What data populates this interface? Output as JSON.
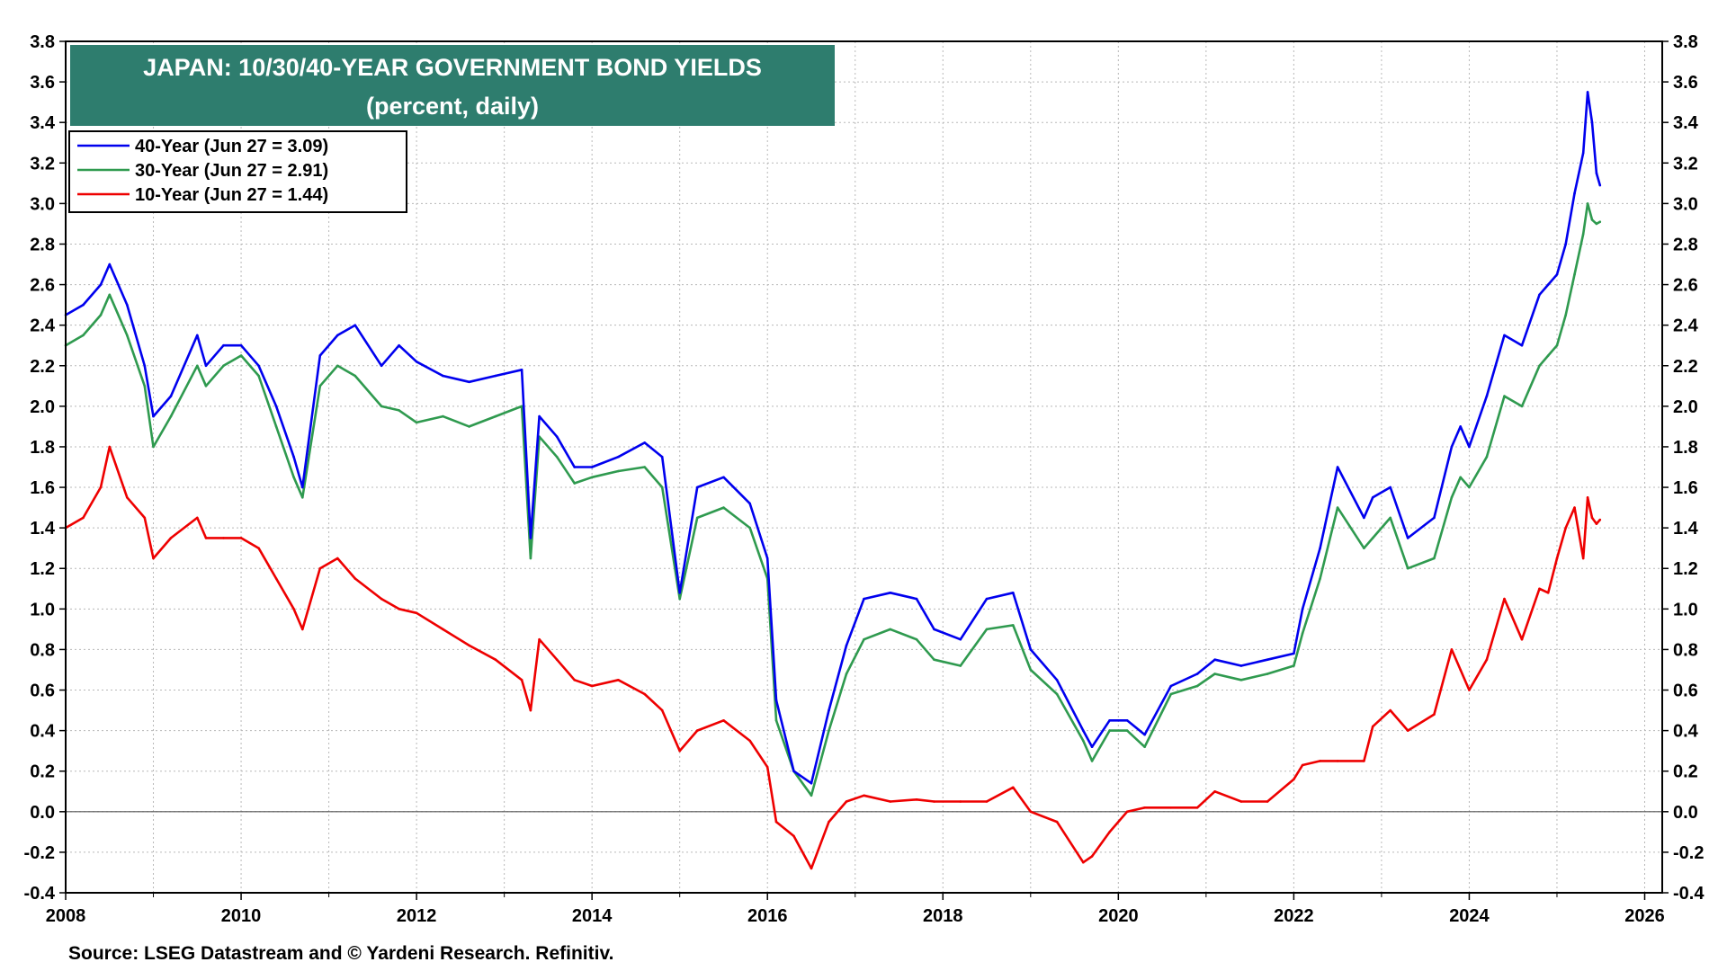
{
  "chart_data": {
    "type": "line",
    "title": "JAPAN: 10/30/40-YEAR GOVERNMENT BOND YIELDS",
    "subtitle": "(percent, daily)",
    "source": "Source: LSEG Datastream and © Yardeni Research. Refinitiv.",
    "xlim": [
      2008,
      2026.2
    ],
    "ylim": [
      -0.4,
      3.8
    ],
    "x_ticks": [
      "2008",
      "2010",
      "2012",
      "2014",
      "2016",
      "2018",
      "2020",
      "2022",
      "2024",
      "2026"
    ],
    "y_ticks": [
      "-0.4",
      "-0.2",
      "0.0",
      "0.2",
      "0.4",
      "0.6",
      "0.8",
      "1.0",
      "1.2",
      "1.4",
      "1.6",
      "1.8",
      "2.0",
      "2.2",
      "2.4",
      "2.6",
      "2.8",
      "3.0",
      "3.2",
      "3.4",
      "3.6",
      "3.8"
    ],
    "grid": true,
    "zero_line": true,
    "legend_position": "top-left",
    "colors": {
      "title_bg": "#2e7d6e",
      "grid": "#b8b8b8"
    },
    "series": [
      {
        "name": "40-Year (Jun 27 = 3.09)",
        "color": "#0000ee",
        "x": [
          2008.0,
          2008.2,
          2008.4,
          2008.5,
          2008.7,
          2008.9,
          2009.0,
          2009.2,
          2009.5,
          2009.6,
          2009.8,
          2010.0,
          2010.2,
          2010.4,
          2010.6,
          2010.7,
          2010.9,
          2011.1,
          2011.3,
          2011.6,
          2011.8,
          2012.0,
          2012.3,
          2012.6,
          2012.9,
          2013.2,
          2013.3,
          2013.4,
          2013.6,
          2013.8,
          2014.0,
          2014.3,
          2014.6,
          2014.8,
          2015.0,
          2015.2,
          2015.5,
          2015.8,
          2016.0,
          2016.1,
          2016.3,
          2016.5,
          2016.7,
          2016.9,
          2017.1,
          2017.4,
          2017.7,
          2017.9,
          2018.2,
          2018.5,
          2018.8,
          2019.0,
          2019.3,
          2019.6,
          2019.7,
          2019.9,
          2020.1,
          2020.3,
          2020.6,
          2020.9,
          2021.1,
          2021.4,
          2021.7,
          2022.0,
          2022.1,
          2022.3,
          2022.5,
          2022.8,
          2022.9,
          2023.1,
          2023.3,
          2023.6,
          2023.8,
          2023.9,
          2024.0,
          2024.2,
          2024.4,
          2024.6,
          2024.8,
          2024.9,
          2025.0,
          2025.1,
          2025.2,
          2025.3,
          2025.35,
          2025.4,
          2025.45,
          2025.49
        ],
        "values": [
          2.45,
          2.5,
          2.6,
          2.7,
          2.5,
          2.2,
          1.95,
          2.05,
          2.35,
          2.2,
          2.3,
          2.3,
          2.2,
          2.0,
          1.75,
          1.6,
          2.25,
          2.35,
          2.4,
          2.2,
          2.3,
          2.22,
          2.15,
          2.12,
          2.15,
          2.18,
          1.35,
          1.95,
          1.85,
          1.7,
          1.7,
          1.75,
          1.82,
          1.75,
          1.08,
          1.6,
          1.65,
          1.52,
          1.25,
          0.55,
          0.2,
          0.14,
          0.5,
          0.82,
          1.05,
          1.08,
          1.05,
          0.9,
          0.85,
          1.05,
          1.08,
          0.8,
          0.65,
          0.4,
          0.32,
          0.45,
          0.45,
          0.38,
          0.62,
          0.68,
          0.75,
          0.72,
          0.75,
          0.78,
          1.0,
          1.3,
          1.7,
          1.45,
          1.55,
          1.6,
          1.35,
          1.45,
          1.8,
          1.9,
          1.8,
          2.05,
          2.35,
          2.3,
          2.55,
          2.6,
          2.65,
          2.8,
          3.05,
          3.25,
          3.55,
          3.4,
          3.15,
          3.09
        ]
      },
      {
        "name": "30-Year (Jun 27 = 2.91)",
        "color": "#2f9a4f",
        "x": [
          2008.0,
          2008.2,
          2008.4,
          2008.5,
          2008.7,
          2008.9,
          2009.0,
          2009.2,
          2009.5,
          2009.6,
          2009.8,
          2010.0,
          2010.2,
          2010.4,
          2010.6,
          2010.7,
          2010.9,
          2011.1,
          2011.3,
          2011.6,
          2011.8,
          2012.0,
          2012.3,
          2012.6,
          2012.9,
          2013.2,
          2013.3,
          2013.4,
          2013.6,
          2013.8,
          2014.0,
          2014.3,
          2014.6,
          2014.8,
          2015.0,
          2015.2,
          2015.5,
          2015.8,
          2016.0,
          2016.1,
          2016.3,
          2016.5,
          2016.7,
          2016.9,
          2017.1,
          2017.4,
          2017.7,
          2017.9,
          2018.2,
          2018.5,
          2018.8,
          2019.0,
          2019.3,
          2019.6,
          2019.7,
          2019.9,
          2020.1,
          2020.3,
          2020.6,
          2020.9,
          2021.1,
          2021.4,
          2021.7,
          2022.0,
          2022.1,
          2022.3,
          2022.5,
          2022.8,
          2022.9,
          2023.1,
          2023.3,
          2023.6,
          2023.8,
          2023.9,
          2024.0,
          2024.2,
          2024.4,
          2024.6,
          2024.8,
          2024.9,
          2025.0,
          2025.1,
          2025.2,
          2025.3,
          2025.35,
          2025.4,
          2025.45,
          2025.49
        ],
        "values": [
          2.3,
          2.35,
          2.45,
          2.55,
          2.35,
          2.1,
          1.8,
          1.95,
          2.2,
          2.1,
          2.2,
          2.25,
          2.15,
          1.9,
          1.65,
          1.55,
          2.1,
          2.2,
          2.15,
          2.0,
          1.98,
          1.92,
          1.95,
          1.9,
          1.95,
          2.0,
          1.25,
          1.85,
          1.75,
          1.62,
          1.65,
          1.68,
          1.7,
          1.6,
          1.05,
          1.45,
          1.5,
          1.4,
          1.15,
          0.45,
          0.2,
          0.08,
          0.4,
          0.68,
          0.85,
          0.9,
          0.85,
          0.75,
          0.72,
          0.9,
          0.92,
          0.7,
          0.58,
          0.35,
          0.25,
          0.4,
          0.4,
          0.32,
          0.58,
          0.62,
          0.68,
          0.65,
          0.68,
          0.72,
          0.88,
          1.15,
          1.5,
          1.3,
          1.35,
          1.45,
          1.2,
          1.25,
          1.55,
          1.65,
          1.6,
          1.75,
          2.05,
          2.0,
          2.2,
          2.25,
          2.3,
          2.45,
          2.65,
          2.85,
          3.0,
          2.92,
          2.9,
          2.91
        ]
      },
      {
        "name": "10-Year (Jun 27 = 1.44)",
        "color": "#ee0000",
        "x": [
          2008.0,
          2008.2,
          2008.4,
          2008.5,
          2008.7,
          2008.9,
          2009.0,
          2009.2,
          2009.5,
          2009.6,
          2009.8,
          2010.0,
          2010.2,
          2010.4,
          2010.6,
          2010.7,
          2010.9,
          2011.1,
          2011.3,
          2011.6,
          2011.8,
          2012.0,
          2012.3,
          2012.6,
          2012.9,
          2013.2,
          2013.3,
          2013.4,
          2013.6,
          2013.8,
          2014.0,
          2014.3,
          2014.6,
          2014.8,
          2015.0,
          2015.2,
          2015.5,
          2015.8,
          2016.0,
          2016.1,
          2016.3,
          2016.5,
          2016.7,
          2016.9,
          2017.1,
          2017.4,
          2017.7,
          2017.9,
          2018.2,
          2018.5,
          2018.8,
          2019.0,
          2019.3,
          2019.6,
          2019.7,
          2019.9,
          2020.1,
          2020.3,
          2020.6,
          2020.9,
          2021.1,
          2021.4,
          2021.7,
          2022.0,
          2022.1,
          2022.3,
          2022.5,
          2022.8,
          2022.9,
          2023.1,
          2023.3,
          2023.6,
          2023.8,
          2023.9,
          2024.0,
          2024.2,
          2024.4,
          2024.6,
          2024.8,
          2024.9,
          2025.0,
          2025.1,
          2025.2,
          2025.3,
          2025.35,
          2025.4,
          2025.45,
          2025.49
        ],
        "values": [
          1.4,
          1.45,
          1.6,
          1.8,
          1.55,
          1.45,
          1.25,
          1.35,
          1.45,
          1.35,
          1.35,
          1.35,
          1.3,
          1.15,
          1.0,
          0.9,
          1.2,
          1.25,
          1.15,
          1.05,
          1.0,
          0.98,
          0.9,
          0.82,
          0.75,
          0.65,
          0.5,
          0.85,
          0.75,
          0.65,
          0.62,
          0.65,
          0.58,
          0.5,
          0.3,
          0.4,
          0.45,
          0.35,
          0.22,
          -0.05,
          -0.12,
          -0.28,
          -0.05,
          0.05,
          0.08,
          0.05,
          0.06,
          0.05,
          0.05,
          0.05,
          0.12,
          0.0,
          -0.05,
          -0.25,
          -0.22,
          -0.1,
          0.0,
          0.02,
          0.02,
          0.02,
          0.1,
          0.05,
          0.05,
          0.16,
          0.23,
          0.25,
          0.25,
          0.25,
          0.42,
          0.5,
          0.4,
          0.48,
          0.8,
          0.7,
          0.6,
          0.75,
          1.05,
          0.85,
          1.1,
          1.08,
          1.25,
          1.4,
          1.5,
          1.25,
          1.55,
          1.45,
          1.42,
          1.44
        ]
      }
    ]
  }
}
